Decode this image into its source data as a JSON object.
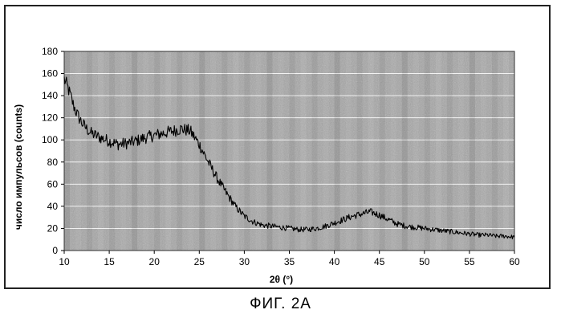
{
  "figure_caption": "ФИГ. 2А",
  "chart_data": {
    "type": "line",
    "title": "",
    "xlabel": "2θ (°)",
    "ylabel": "число импульсов (counts)",
    "xlim": [
      10,
      60
    ],
    "ylim": [
      0,
      180
    ],
    "x_ticks": [
      10,
      15,
      20,
      25,
      30,
      35,
      40,
      45,
      50,
      55,
      60
    ],
    "y_ticks": [
      0,
      20,
      40,
      60,
      80,
      100,
      120,
      140,
      160,
      180
    ],
    "grid": true,
    "legend": "none",
    "colors": {
      "line": "#000000",
      "plot_background": "#a6a6a6",
      "gridline": "#ffffff"
    },
    "series": [
      {
        "x": [
          10,
          10.5,
          11,
          11.5,
          12,
          12.5,
          13,
          13.5,
          14,
          15,
          16,
          17,
          18,
          19,
          20,
          21,
          22,
          23,
          24,
          25,
          26,
          27,
          28,
          29,
          30,
          31,
          32,
          33,
          34,
          35,
          36,
          37,
          38,
          39,
          40,
          41,
          42,
          43,
          44,
          45,
          46,
          47,
          48,
          49,
          50,
          51,
          52,
          53,
          54,
          55,
          56,
          57,
          58,
          59,
          60
        ],
        "y": [
          155,
          145,
          132,
          122,
          115,
          110,
          106,
          104,
          102,
          99,
          96,
          97,
          99,
          102,
          104,
          106,
          108,
          110,
          108,
          96,
          80,
          65,
          52,
          40,
          31,
          26,
          23,
          22,
          21,
          20,
          19,
          19,
          20,
          22,
          25,
          28,
          31,
          33,
          35,
          32,
          28,
          24,
          22,
          21,
          20,
          19,
          18,
          17,
          16,
          15,
          14,
          14,
          13,
          13,
          12
        ]
      }
    ]
  }
}
